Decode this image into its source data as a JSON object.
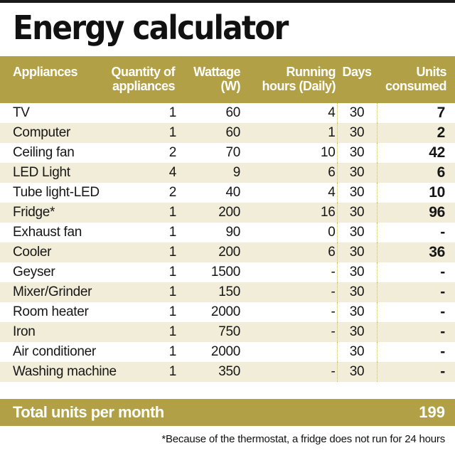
{
  "title": "Energy calculator",
  "columns": {
    "appliances": "Appliances",
    "quantity_line1": "Quantity of",
    "quantity_line2": "appliances",
    "wattage_line1": "Wattage",
    "wattage_line2": "(W)",
    "running_line1": "Running",
    "running_line2": "hours (Daily)",
    "days": "Days",
    "units_line1": "Units",
    "units_line2": "consumed"
  },
  "rows": [
    {
      "appliance": "TV",
      "quantity": "1",
      "wattage": "60",
      "running_hours": "4",
      "days": "30",
      "units": "7"
    },
    {
      "appliance": "Computer",
      "quantity": "1",
      "wattage": "60",
      "running_hours": "1",
      "days": "30",
      "units": "2"
    },
    {
      "appliance": "Ceiling fan",
      "quantity": "2",
      "wattage": "70",
      "running_hours": "10",
      "days": "30",
      "units": "42"
    },
    {
      "appliance": "LED Light",
      "quantity": "4",
      "wattage": "9",
      "running_hours": "6",
      "days": "30",
      "units": "6"
    },
    {
      "appliance": "Tube light-LED",
      "quantity": "2",
      "wattage": "40",
      "running_hours": "4",
      "days": "30",
      "units": "10"
    },
    {
      "appliance": "Fridge*",
      "quantity": "1",
      "wattage": "200",
      "running_hours": "16",
      "days": "30",
      "units": "96"
    },
    {
      "appliance": "Exhaust fan",
      "quantity": "1",
      "wattage": "90",
      "running_hours": "0",
      "days": "30",
      "units": "-"
    },
    {
      "appliance": "Cooler",
      "quantity": "1",
      "wattage": "200",
      "running_hours": "6",
      "days": "30",
      "units": "36"
    },
    {
      "appliance": "Geyser",
      "quantity": "1",
      "wattage": "1500",
      "running_hours": "-",
      "days": "30",
      "units": "-"
    },
    {
      "appliance": "Mixer/Grinder",
      "quantity": "1",
      "wattage": "150",
      "running_hours": "-",
      "days": "30",
      "units": "-"
    },
    {
      "appliance": "Room heater",
      "quantity": "1",
      "wattage": "2000",
      "running_hours": "-",
      "days": "30",
      "units": "-"
    },
    {
      "appliance": "Iron",
      "quantity": "1",
      "wattage": "750",
      "running_hours": "-",
      "days": "30",
      "units": "-"
    },
    {
      "appliance": "Air conditioner",
      "quantity": "1",
      "wattage": "2000",
      "running_hours": "",
      "days": "30",
      "units": "-"
    },
    {
      "appliance": "Washing machine",
      "quantity": "1",
      "wattage": "350",
      "running_hours": "-",
      "days": "30",
      "units": "-"
    }
  ],
  "total": {
    "label": "Total units per month",
    "value": "199"
  },
  "footnote": "*Because of the thermostat, a fridge does not run for 24 hours",
  "colors": {
    "header_bg": "#b2a047",
    "alt_row_bg": "#f1edd8",
    "header_text": "#ffffff"
  }
}
